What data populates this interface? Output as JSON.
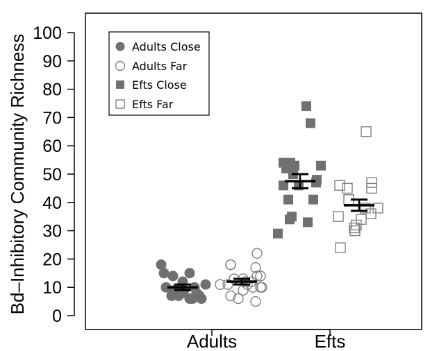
{
  "chart_data": {
    "type": "scatter",
    "ylabel": "Bd–Inhibitory Community Richness",
    "xlabel": "",
    "ylim": [
      0,
      100
    ],
    "yticks": [
      0,
      10,
      20,
      30,
      40,
      50,
      60,
      70,
      80,
      90,
      100
    ],
    "categories": [
      "Adults",
      "Efts"
    ],
    "legend": {
      "placement": "top-left"
    },
    "colors": {
      "filled": "#707070",
      "open": "#808080",
      "mean": "#000000"
    },
    "series": [
      {
        "name": "Adults Close",
        "category": "Adults",
        "marker": "filled-circle",
        "values": [
          18,
          15,
          14,
          10,
          7,
          9,
          8,
          7,
          10,
          15,
          12,
          10,
          8,
          6,
          6,
          7,
          6,
          11,
          9
        ],
        "mean": 10,
        "se": 1
      },
      {
        "name": "Adults Far",
        "category": "Adults",
        "marker": "open-circle",
        "values": [
          11,
          18,
          18,
          13,
          7,
          6,
          13,
          11,
          9,
          11,
          12,
          12,
          10,
          5,
          17,
          14,
          22,
          10,
          14,
          10
        ],
        "mean": 12,
        "se": 1
      },
      {
        "name": "Efts Close",
        "category": "Efts",
        "marker": "filled-square",
        "values": [
          29,
          54,
          52,
          46,
          41,
          34,
          35,
          54,
          50,
          53,
          46,
          74,
          33,
          68,
          41,
          47,
          48,
          53
        ],
        "mean": 47.5,
        "se": 2.5
      },
      {
        "name": "Efts Far",
        "category": "Efts",
        "marker": "open-square",
        "values": [
          35,
          46,
          24,
          45,
          41,
          31,
          30,
          32,
          34,
          38,
          65,
          36,
          47,
          45,
          38
        ],
        "mean": 39,
        "se": 2
      }
    ]
  }
}
